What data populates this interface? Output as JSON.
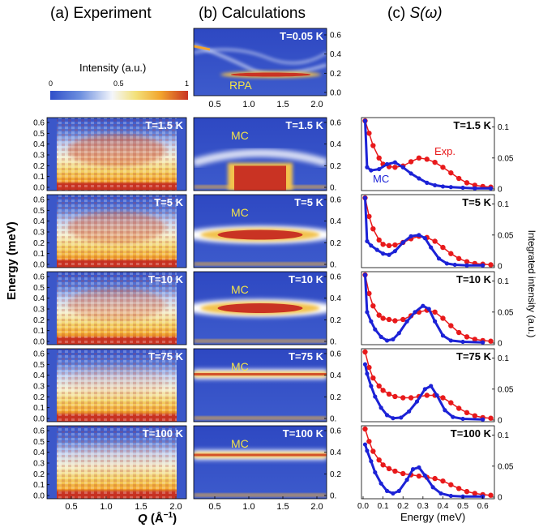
{
  "titles": {
    "a": "(a) Experiment",
    "b": "(b) Calculations",
    "c_prefix": "(c) ",
    "c_italic": "S(ω)"
  },
  "colorbar": {
    "title": "Intensity (a.u.)",
    "ticks": [
      "0",
      "0.5",
      "1"
    ],
    "colors": [
      "#2f4fc9",
      "#6e90df",
      "#f4f6fb",
      "#f3e17a",
      "#f2a52e",
      "#c93323"
    ]
  },
  "axis_labels": {
    "left_y": "Energy (meV)",
    "right_y": "Integrated intensity (a.u.)",
    "x_q_prefix": "Q",
    "x_q_unit": " (Å",
    "x_q_sup": "−1",
    "x_q_close": ")",
    "x_energy": "Energy (meV)"
  },
  "q_ticks": [
    "0.5",
    "1.0",
    "1.5",
    "2.0"
  ],
  "e_ticks": [
    "0.0",
    "0.1",
    "0.2",
    "0.3",
    "0.4",
    "0.5",
    "0.6"
  ],
  "rpa_panel": {
    "temperature": "T=0.05 K",
    "label": "RPA",
    "right_ticks": [
      "0.0",
      "0.2",
      "0.4",
      "0.6"
    ]
  },
  "rows": [
    {
      "temperature": "T=1.5 K"
    },
    {
      "temperature": "T=5 K"
    },
    {
      "temperature": "T=10 K"
    },
    {
      "temperature": "T=75 K"
    },
    {
      "temperature": "T=100 K"
    }
  ],
  "calc_label": "MC",
  "calc_right_ticks": [
    "0.",
    "0.2",
    "0.4",
    "0.6"
  ],
  "sw_right_ticks": [
    "0",
    "0.05",
    "0.1"
  ],
  "sw_x_ticks": [
    "0.0",
    "0.1",
    "0.2",
    "0.3",
    "0.4",
    "0.5",
    "0.6"
  ],
  "sw_legend": {
    "exp": "Exp.",
    "mc": "MC"
  },
  "series_colors": {
    "exp": "#e8191b",
    "mc": "#1c22d6"
  },
  "chart_data": [
    {
      "type": "line",
      "panel": "S(ω) T=1.5 K",
      "xlabel": "Energy (meV)",
      "ylabel": "Integrated intensity (a.u.)",
      "xlim": [
        0,
        0.65
      ],
      "ylim": [
        0,
        0.11
      ],
      "series": [
        {
          "name": "Exp.",
          "x": [
            0.01,
            0.03,
            0.05,
            0.08,
            0.1,
            0.13,
            0.16,
            0.2,
            0.24,
            0.28,
            0.32,
            0.36,
            0.4,
            0.44,
            0.48,
            0.52,
            0.56,
            0.6,
            0.64
          ],
          "y": [
            0.11,
            0.09,
            0.07,
            0.05,
            0.04,
            0.036,
            0.035,
            0.037,
            0.044,
            0.05,
            0.048,
            0.043,
            0.035,
            0.026,
            0.017,
            0.01,
            0.006,
            0.004,
            0.003
          ]
        },
        {
          "name": "MC",
          "x": [
            0.01,
            0.02,
            0.04,
            0.08,
            0.12,
            0.16,
            0.2,
            0.24,
            0.28,
            0.32,
            0.36,
            0.4,
            0.44,
            0.5,
            0.56,
            0.64
          ],
          "y": [
            0.11,
            0.035,
            0.03,
            0.032,
            0.04,
            0.043,
            0.035,
            0.025,
            0.017,
            0.01,
            0.006,
            0.004,
            0.003,
            0.002,
            0.001,
            0.001
          ]
        }
      ]
    },
    {
      "type": "line",
      "panel": "S(ω) T=5 K",
      "xlim": [
        0,
        0.65
      ],
      "ylim": [
        0,
        0.11
      ],
      "series": [
        {
          "name": "Exp.",
          "x": [
            0.01,
            0.03,
            0.05,
            0.08,
            0.1,
            0.13,
            0.16,
            0.2,
            0.24,
            0.28,
            0.32,
            0.36,
            0.4,
            0.44,
            0.48,
            0.52,
            0.56,
            0.6,
            0.64
          ],
          "y": [
            0.11,
            0.08,
            0.06,
            0.042,
            0.035,
            0.033,
            0.034,
            0.038,
            0.044,
            0.048,
            0.046,
            0.04,
            0.03,
            0.02,
            0.012,
            0.007,
            0.004,
            0.003,
            0.002
          ]
        },
        {
          "name": "MC",
          "x": [
            0.01,
            0.02,
            0.04,
            0.07,
            0.1,
            0.13,
            0.16,
            0.2,
            0.24,
            0.28,
            0.31,
            0.34,
            0.38,
            0.42,
            0.46,
            0.52,
            0.6
          ],
          "y": [
            0.11,
            0.04,
            0.033,
            0.026,
            0.02,
            0.018,
            0.024,
            0.038,
            0.048,
            0.05,
            0.045,
            0.03,
            0.012,
            0.004,
            0.002,
            0.001,
            0.001
          ]
        }
      ]
    },
    {
      "type": "line",
      "panel": "S(ω) T=10 K",
      "xlim": [
        0,
        0.65
      ],
      "ylim": [
        0,
        0.11
      ],
      "series": [
        {
          "name": "Exp.",
          "x": [
            0.01,
            0.03,
            0.05,
            0.08,
            0.1,
            0.13,
            0.16,
            0.2,
            0.24,
            0.28,
            0.32,
            0.36,
            0.4,
            0.44,
            0.48,
            0.52,
            0.56,
            0.6,
            0.64
          ],
          "y": [
            0.11,
            0.08,
            0.06,
            0.045,
            0.04,
            0.038,
            0.036,
            0.038,
            0.044,
            0.05,
            0.053,
            0.05,
            0.04,
            0.028,
            0.017,
            0.01,
            0.006,
            0.004,
            0.003
          ]
        },
        {
          "name": "MC",
          "x": [
            0.01,
            0.02,
            0.04,
            0.06,
            0.09,
            0.12,
            0.15,
            0.18,
            0.22,
            0.26,
            0.3,
            0.33,
            0.36,
            0.4,
            0.44,
            0.5,
            0.6
          ],
          "y": [
            0.11,
            0.05,
            0.035,
            0.022,
            0.01,
            0.004,
            0.006,
            0.016,
            0.035,
            0.05,
            0.06,
            0.055,
            0.035,
            0.012,
            0.004,
            0.002,
            0.001
          ]
        }
      ]
    },
    {
      "type": "line",
      "panel": "S(ω) T=75 K",
      "xlim": [
        0,
        0.65
      ],
      "ylim": [
        0,
        0.11
      ],
      "series": [
        {
          "name": "Exp.",
          "x": [
            0.01,
            0.03,
            0.05,
            0.08,
            0.1,
            0.13,
            0.16,
            0.2,
            0.24,
            0.28,
            0.32,
            0.36,
            0.4,
            0.44,
            0.48,
            0.52,
            0.56,
            0.6,
            0.64
          ],
          "y": [
            0.11,
            0.085,
            0.068,
            0.055,
            0.048,
            0.042,
            0.038,
            0.036,
            0.036,
            0.038,
            0.04,
            0.04,
            0.036,
            0.028,
            0.019,
            0.012,
            0.007,
            0.004,
            0.003
          ]
        },
        {
          "name": "MC",
          "x": [
            0.01,
            0.02,
            0.04,
            0.06,
            0.09,
            0.12,
            0.15,
            0.19,
            0.23,
            0.27,
            0.31,
            0.34,
            0.37,
            0.41,
            0.45,
            0.5,
            0.6
          ],
          "y": [
            0.09,
            0.075,
            0.055,
            0.038,
            0.02,
            0.008,
            0.003,
            0.004,
            0.014,
            0.03,
            0.05,
            0.055,
            0.04,
            0.016,
            0.005,
            0.002,
            0.001
          ]
        }
      ]
    },
    {
      "type": "line",
      "panel": "S(ω) T=100 K",
      "xlim": [
        0,
        0.65
      ],
      "ylim": [
        0,
        0.11
      ],
      "series": [
        {
          "name": "Exp.",
          "x": [
            0.01,
            0.03,
            0.05,
            0.08,
            0.1,
            0.13,
            0.16,
            0.2,
            0.24,
            0.28,
            0.32,
            0.36,
            0.4,
            0.44,
            0.48,
            0.52,
            0.56,
            0.6,
            0.64
          ],
          "y": [
            0.11,
            0.09,
            0.074,
            0.06,
            0.052,
            0.046,
            0.042,
            0.038,
            0.036,
            0.034,
            0.032,
            0.03,
            0.026,
            0.02,
            0.014,
            0.009,
            0.006,
            0.004,
            0.003
          ]
        },
        {
          "name": "MC",
          "x": [
            0.01,
            0.02,
            0.04,
            0.06,
            0.09,
            0.12,
            0.15,
            0.18,
            0.22,
            0.25,
            0.28,
            0.31,
            0.35,
            0.39,
            0.44,
            0.5,
            0.6
          ],
          "y": [
            0.085,
            0.075,
            0.058,
            0.04,
            0.022,
            0.01,
            0.006,
            0.01,
            0.028,
            0.045,
            0.048,
            0.035,
            0.016,
            0.006,
            0.002,
            0.001,
            0.001
          ]
        }
      ]
    }
  ]
}
